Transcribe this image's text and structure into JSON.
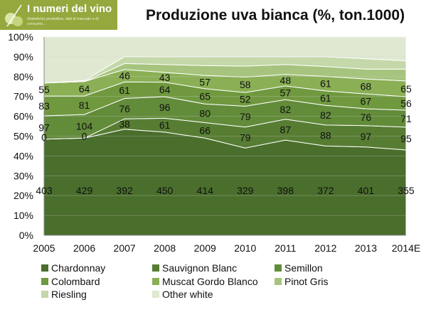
{
  "logo": {
    "brand": "I numeri del vino",
    "tagline": "Statistiche produttive, dati di mercato e di consumo..."
  },
  "chart_data": {
    "type": "area",
    "stacked": true,
    "percent": true,
    "title": "Produzione uva bianca (%, ton.1000)",
    "categories": [
      "2005",
      "2006",
      "2007",
      "2008",
      "2009",
      "2010",
      "2011",
      "2012",
      "2013",
      "2014E"
    ],
    "ylim": [
      0,
      100
    ],
    "ytick_labels": [
      "0%",
      "10%",
      "20%",
      "30%",
      "40%",
      "50%",
      "60%",
      "70%",
      "80%",
      "90%",
      "100%"
    ],
    "grid": true,
    "legend_position": "bottom",
    "series": [
      {
        "name": "Chardonnay",
        "color": "#4a6e2c",
        "labels": [
          "403",
          "429",
          "392",
          "450",
          "414",
          "329",
          "398",
          "372",
          "401",
          "355"
        ],
        "pct": [
          48.5,
          49.0,
          53.5,
          52.0,
          49.0,
          44.0,
          48.0,
          45.0,
          44.5,
          43.0
        ]
      },
      {
        "name": "Sauvignon Blanc",
        "color": "#577d33",
        "labels": [
          "0",
          "0",
          "38",
          "61",
          "66",
          "79",
          "87",
          "88",
          "97",
          "95"
        ],
        "pct": [
          0,
          0,
          5.2,
          7.0,
          7.8,
          10.6,
          10.5,
          10.6,
          10.8,
          11.5
        ]
      },
      {
        "name": "Semillon",
        "color": "#628b3a",
        "labels": [
          "97",
          "104",
          "76",
          "96",
          "80",
          "79",
          "82",
          "82",
          "76",
          "71"
        ],
        "pct": [
          11.7,
          11.9,
          10.3,
          10.9,
          9.4,
          10.5,
          9.9,
          9.9,
          8.5,
          8.6
        ]
      },
      {
        "name": "Colombard",
        "color": "#70993f",
        "labels": [
          "83",
          "81",
          "61",
          "64",
          "65",
          "52",
          "57",
          "61",
          "67",
          "56"
        ],
        "pct": [
          10.0,
          9.3,
          8.3,
          7.3,
          7.7,
          6.9,
          6.9,
          7.3,
          7.5,
          6.8
        ]
      },
      {
        "name": "Muscat Gordo Blanco",
        "color": "#8aaf55",
        "labels": [
          "55",
          "64",
          "46",
          "43",
          "57",
          "58",
          "48",
          "61",
          "68",
          "65"
        ],
        "pct": [
          6.6,
          7.3,
          6.3,
          4.9,
          6.7,
          7.8,
          5.8,
          7.3,
          7.5,
          7.9
        ]
      },
      {
        "name": "Pinot Gris",
        "color": "#a6c47d",
        "labels": [],
        "pct": [
          0,
          0,
          3.0,
          4.0,
          5.0,
          5.5,
          5.0,
          5.0,
          5.0,
          6.0
        ]
      },
      {
        "name": "Riesling",
        "color": "#c4d8a9",
        "labels": [],
        "pct": [
          0,
          0.5,
          3.5,
          3.9,
          4.4,
          4.7,
          3.9,
          4.9,
          5.2,
          4.2
        ]
      },
      {
        "name": "Other white",
        "color": "#dfe9d1",
        "labels": [],
        "pct": [
          23.2,
          22.0,
          9.9,
          10.0,
          10.0,
          10.0,
          10.0,
          10.0,
          11.0,
          12.0
        ]
      }
    ]
  }
}
